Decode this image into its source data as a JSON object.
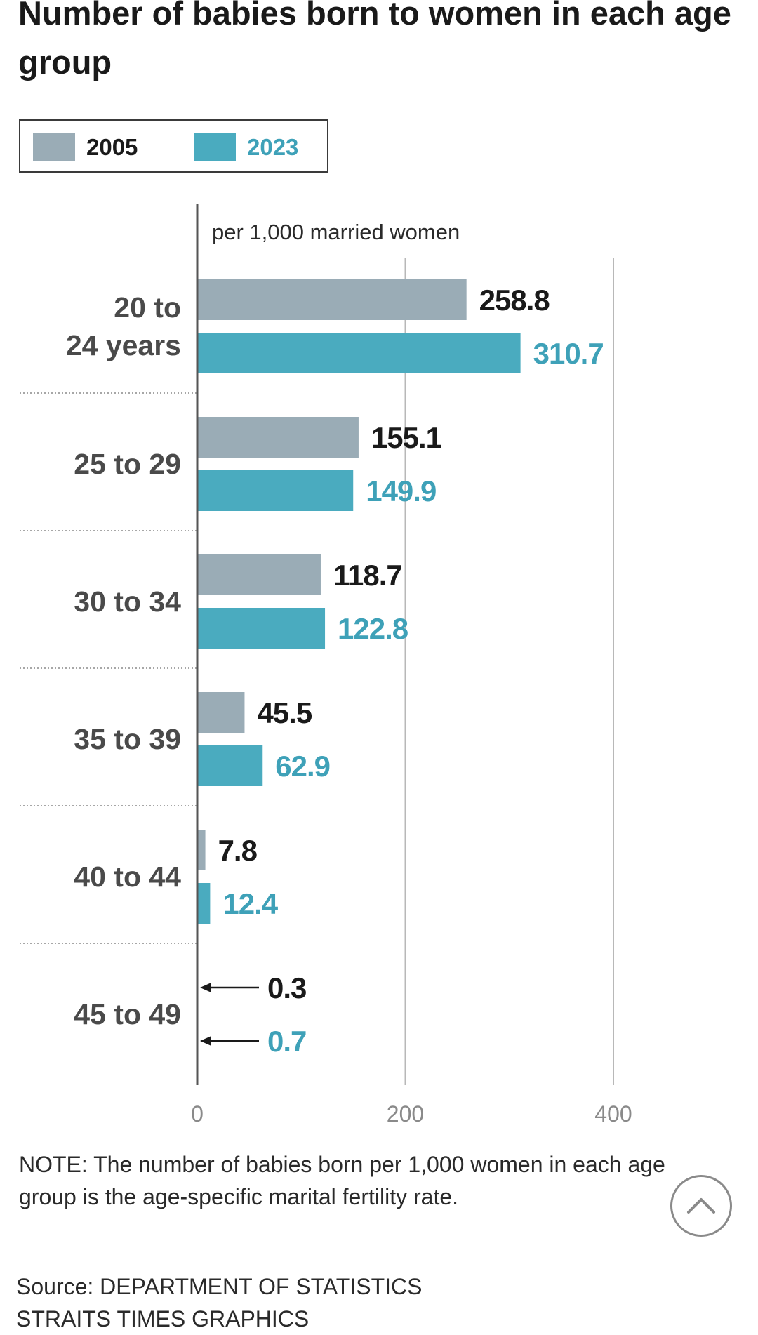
{
  "title": "Number of babies born to women in each age group",
  "legend": [
    {
      "label": "2005",
      "color": "#9aacb6"
    },
    {
      "label": "2023",
      "color": "#4aabbf"
    }
  ],
  "chart_data": {
    "type": "bar",
    "orientation": "horizontal",
    "title": "Number of babies born to women in each age group",
    "unit_label": "per 1,000 married women",
    "categories": [
      "20 to 24 years",
      "25 to 29",
      "30 to 34",
      "35 to 39",
      "40 to 44",
      "45 to 49"
    ],
    "category_lines": [
      [
        "20 to",
        "24 years"
      ],
      [
        "25 to 29"
      ],
      [
        "30 to 34"
      ],
      [
        "35 to 39"
      ],
      [
        "40 to 44"
      ],
      [
        "45 to 49"
      ]
    ],
    "series": [
      {
        "name": "2005",
        "color": "#9aacb6",
        "label_color": "#1a1a1a",
        "values": [
          258.8,
          155.1,
          118.7,
          45.5,
          7.8,
          0.3
        ],
        "value_labels": [
          "258.8",
          "155.1",
          "118.7",
          "45.5",
          "7.8",
          "0.3"
        ]
      },
      {
        "name": "2023",
        "color": "#4aabbf",
        "label_color": "#3ea1b8",
        "values": [
          310.7,
          149.9,
          122.8,
          62.9,
          12.4,
          0.7
        ],
        "value_labels": [
          "310.7",
          "149.9",
          "122.8",
          "62.9",
          "12.4",
          "0.7"
        ]
      }
    ],
    "xlim": [
      0,
      400
    ],
    "xticks": [
      0,
      200,
      400
    ],
    "xtick_labels": [
      "0",
      "200",
      "400"
    ],
    "grid": true,
    "legend_position": "top-left"
  },
  "note": "NOTE: The number of babies born per 1,000 women in each age group is the age-specific marital fertility rate.",
  "source": [
    "Source: DEPARTMENT OF STATISTICS",
    "STRAITS TIMES GRAPHICS"
  ]
}
